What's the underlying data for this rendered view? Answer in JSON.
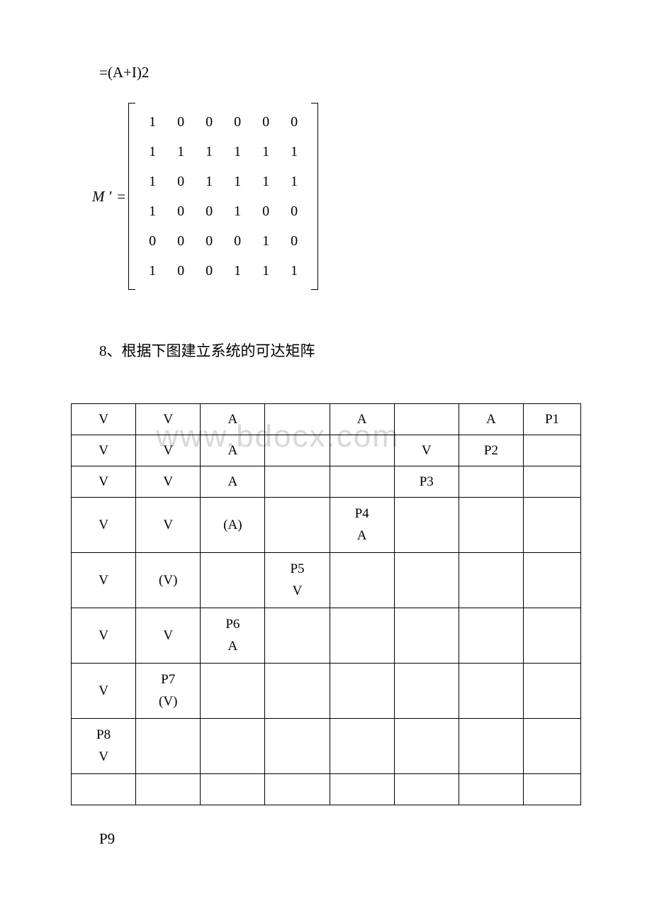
{
  "formula": "=(A+I)2",
  "matrix_label": "M '",
  "matrix_eq": "=",
  "matrix": {
    "rows": [
      [
        "1",
        "0",
        "0",
        "0",
        "0",
        "0"
      ],
      [
        "1",
        "1",
        "1",
        "1",
        "1",
        "1"
      ],
      [
        "1",
        "0",
        "1",
        "1",
        "1",
        "1"
      ],
      [
        "1",
        "0",
        "0",
        "1",
        "0",
        "0"
      ],
      [
        "0",
        "0",
        "0",
        "0",
        "1",
        "0"
      ],
      [
        "1",
        "0",
        "0",
        "1",
        "1",
        "1"
      ]
    ]
  },
  "question": "8、根据下图建立系统的可达矩阵",
  "watermark": "www.bdocx.com",
  "table": {
    "col_widths": [
      "90",
      "90",
      "90",
      "90",
      "90",
      "90",
      "90",
      "80"
    ],
    "rows": [
      {
        "h": "short",
        "cells": [
          "V",
          "V",
          "A",
          "",
          "A",
          "",
          "A",
          "P1"
        ]
      },
      {
        "h": "short",
        "cells": [
          "V",
          "V",
          "A",
          "",
          "",
          "V",
          "P2",
          ""
        ]
      },
      {
        "h": "short",
        "cells": [
          "V",
          "V",
          "A",
          "",
          "",
          "P3",
          "",
          ""
        ]
      },
      {
        "h": "tall",
        "cells": [
          "V",
          "V",
          "(A)",
          "",
          {
            "stack": [
              "P4",
              "A"
            ]
          },
          "",
          "",
          ""
        ]
      },
      {
        "h": "tall",
        "cells": [
          "V",
          "(V)",
          "",
          {
            "stack": [
              "P5",
              "V"
            ]
          },
          "",
          "",
          "",
          ""
        ]
      },
      {
        "h": "tall",
        "cells": [
          "V",
          "V",
          {
            "stack": [
              "P6",
              "A"
            ]
          },
          "",
          "",
          "",
          "",
          ""
        ]
      },
      {
        "h": "tall",
        "cells": [
          "V",
          {
            "stack": [
              "P7",
              "(V)"
            ]
          },
          "",
          "",
          "",
          "",
          "",
          ""
        ]
      },
      {
        "h": "tall",
        "cells": [
          {
            "stack": [
              "P8",
              "V"
            ]
          },
          "",
          "",
          "",
          "",
          "",
          "",
          ""
        ]
      },
      {
        "h": "short",
        "cells": [
          "",
          "",
          "",
          "",
          "",
          "",
          "",
          ""
        ]
      }
    ]
  },
  "below": "P9"
}
